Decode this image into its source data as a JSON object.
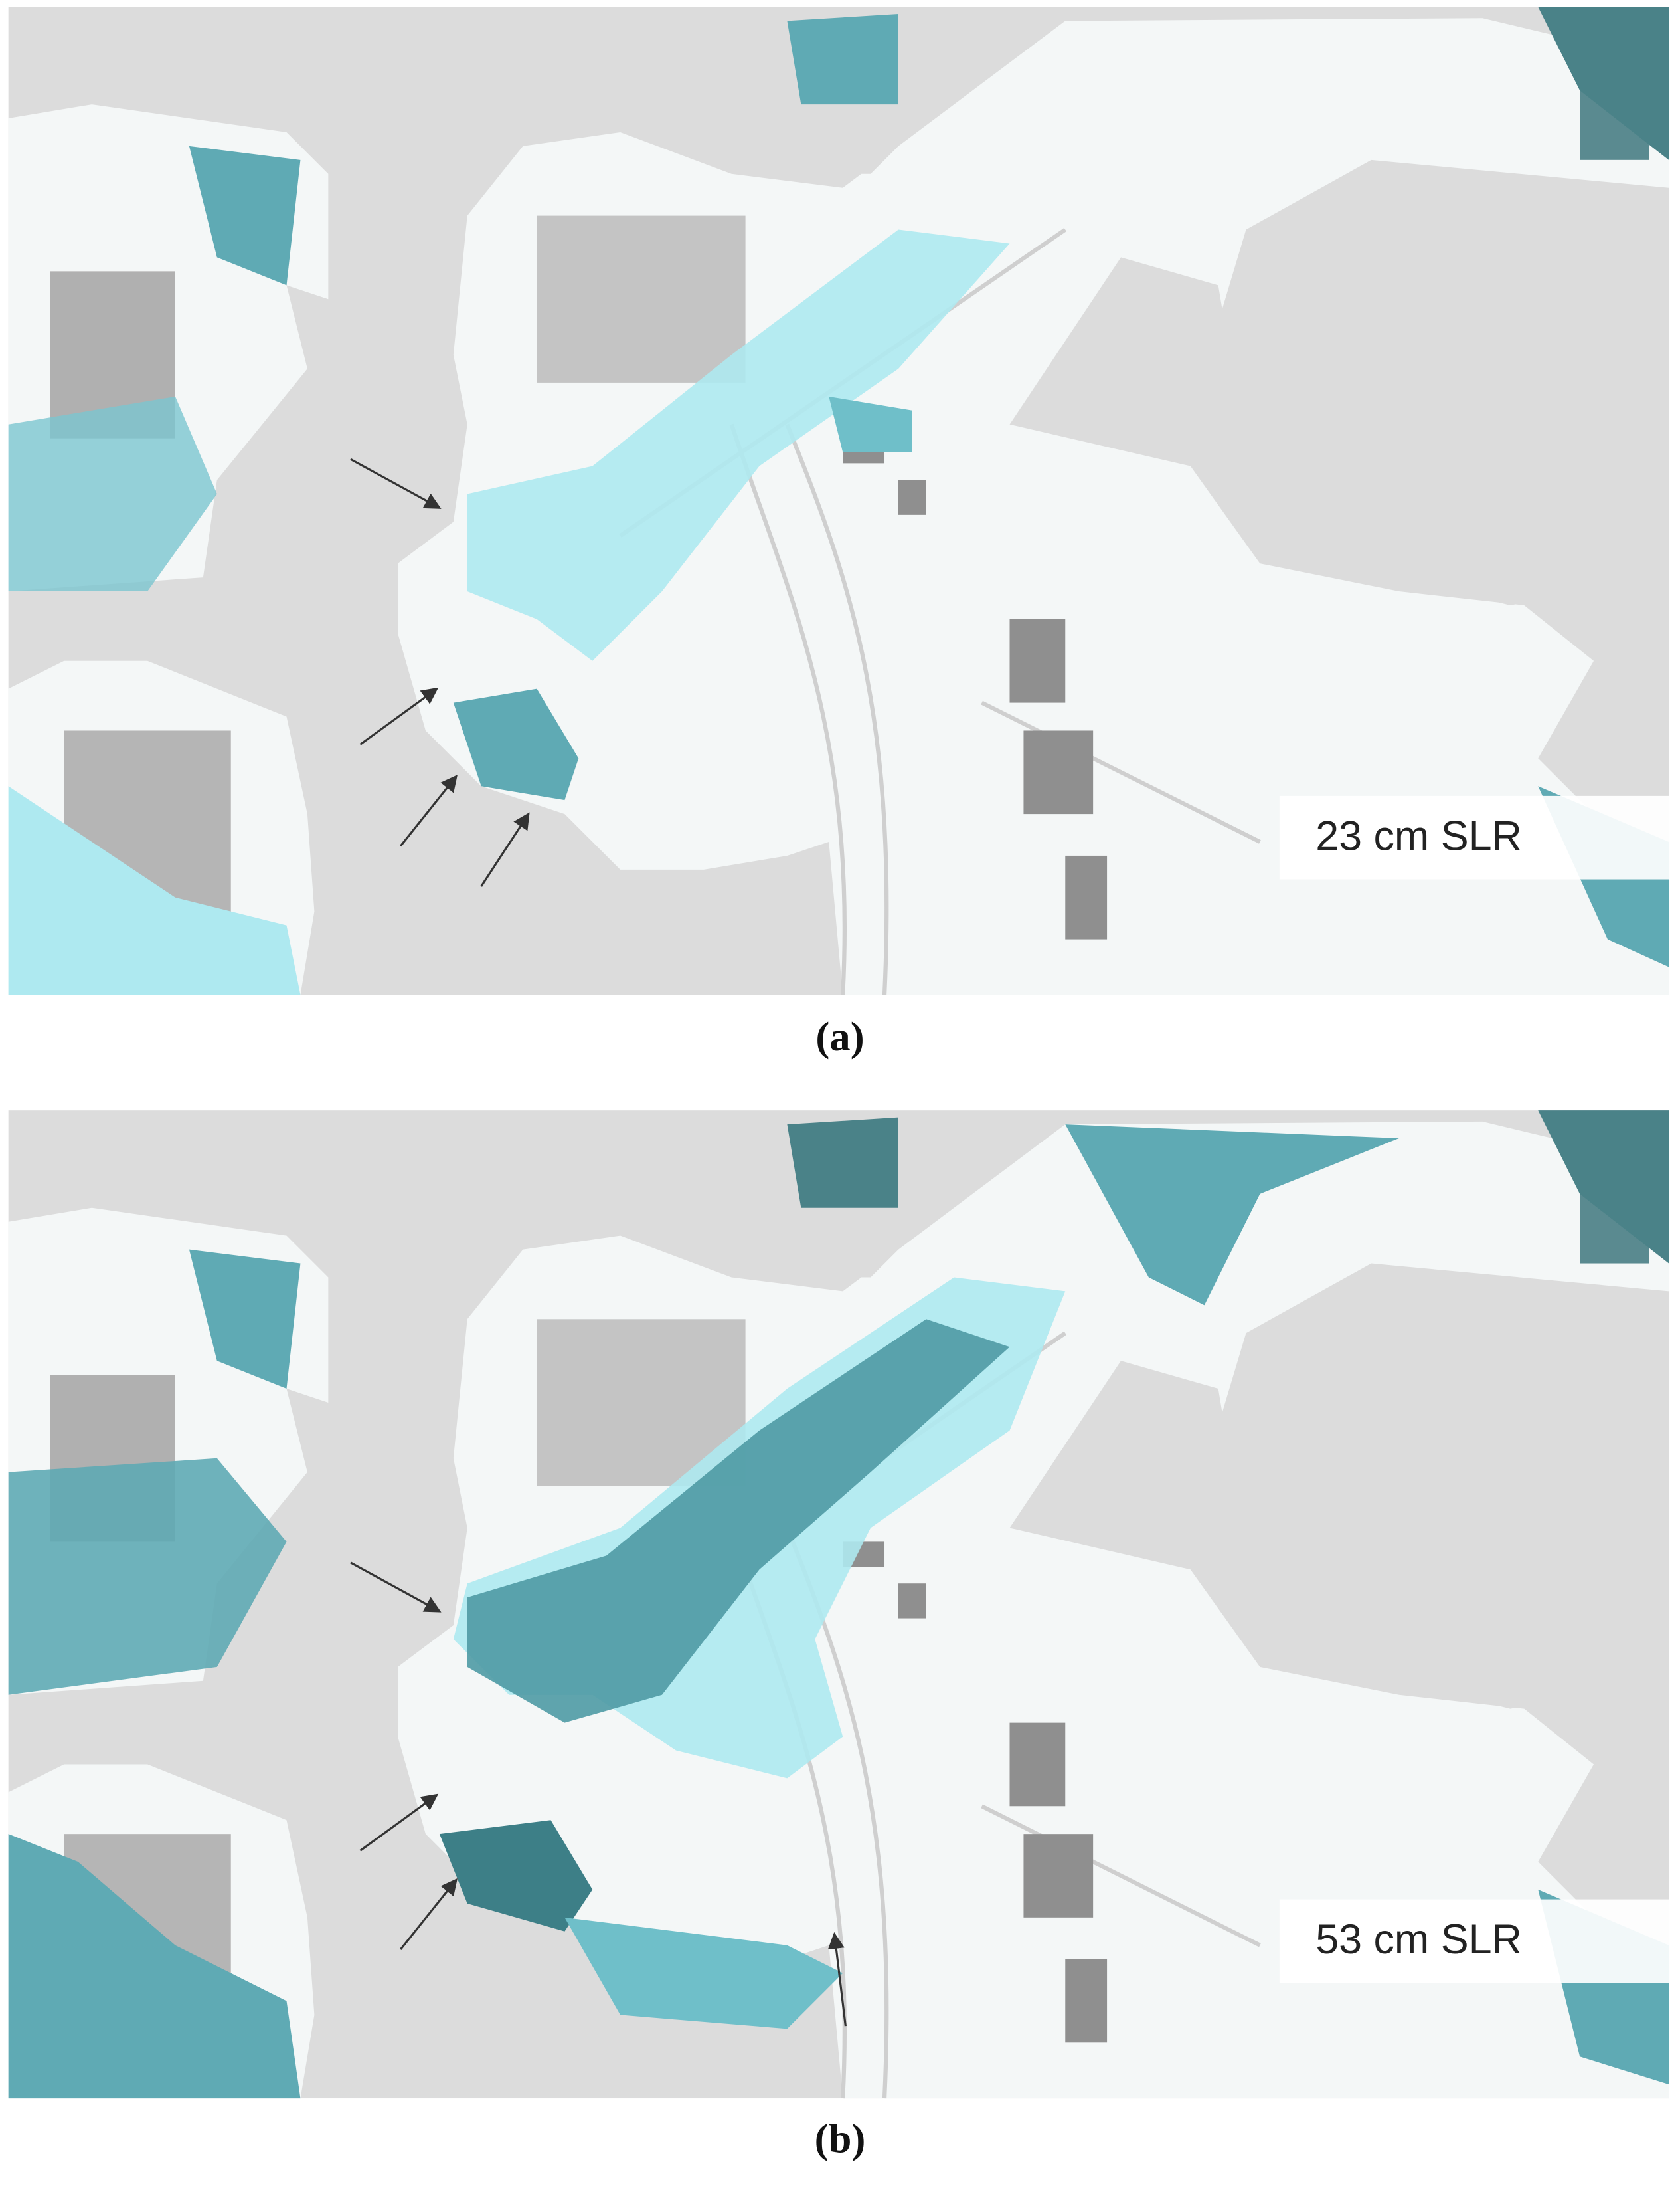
{
  "panels": [
    {
      "label": "23 cm SLR",
      "caption": "(a)"
    },
    {
      "label": "53 cm SLR",
      "caption": "(b)"
    }
  ]
}
